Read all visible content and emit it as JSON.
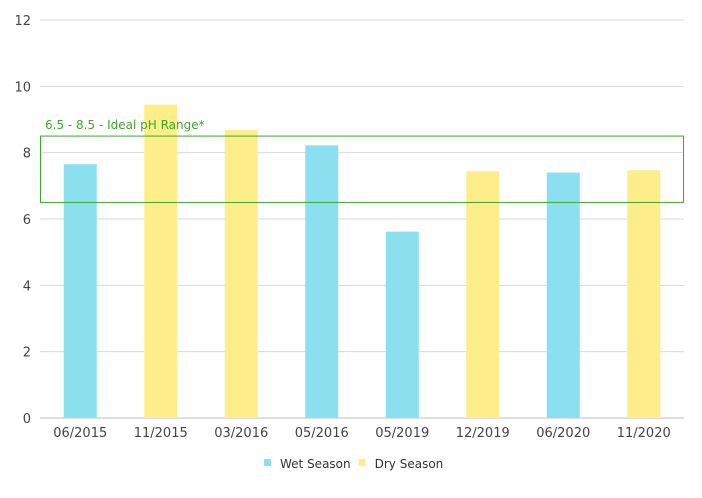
{
  "chart_data": {
    "type": "bar",
    "categories": [
      "06/2015",
      "11/2015",
      "03/2016",
      "05/2016",
      "05/2019",
      "12/2019",
      "06/2020",
      "11/2020"
    ],
    "values": [
      7.65,
      9.45,
      8.68,
      8.22,
      5.62,
      7.44,
      7.4,
      7.47
    ],
    "season": [
      "Wet Season",
      "Dry Season",
      "Dry Season",
      "Wet Season",
      "Wet Season",
      "Dry Season",
      "Wet Season",
      "Dry Season"
    ],
    "ylim": [
      0,
      12
    ],
    "yticks": [
      0,
      2,
      4,
      6,
      8,
      10,
      12
    ],
    "grid": true,
    "legend_position": "bottom",
    "series": [
      {
        "name": "Wet Season",
        "color": "#8ae0ee"
      },
      {
        "name": "Dry Season",
        "color": "#fdee8a"
      }
    ],
    "annotation": {
      "label": "6.5 - 8.5 - Ideal pH Range*",
      "range": [
        6.5,
        8.5
      ],
      "color": "#3aa82a"
    }
  }
}
